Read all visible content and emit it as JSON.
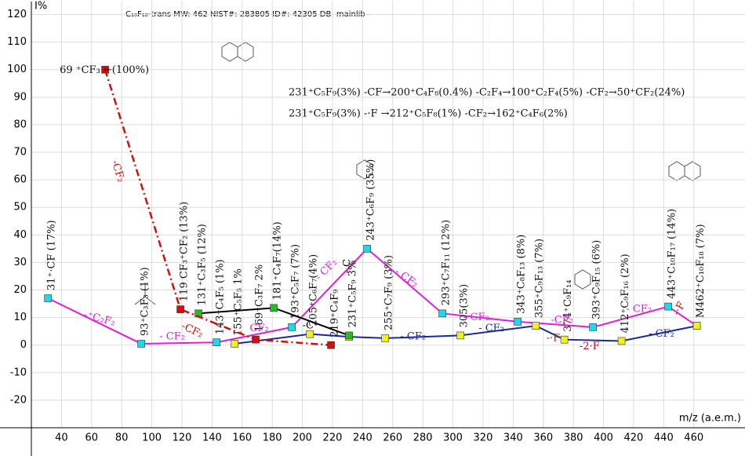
{
  "chart_data": {
    "type": "line",
    "header": "C₁₀F₁₈-trans  MW: 462  NIST#: 283805  ID#: 42305  DB: mainlib",
    "y_label": "I%",
    "x_label": "m/z (a.e.m.)",
    "xlim": [
      20,
      494
    ],
    "ylim": [
      -30,
      125
    ],
    "xticks": [
      40,
      60,
      80,
      100,
      120,
      140,
      160,
      180,
      200,
      220,
      240,
      260,
      280,
      300,
      320,
      340,
      360,
      380,
      400,
      420,
      440,
      460
    ],
    "yticks": [
      -20,
      -10,
      0,
      10,
      20,
      30,
      40,
      50,
      60,
      70,
      80,
      90,
      100,
      110,
      120
    ],
    "grid": true,
    "series": [
      {
        "color": "#e020d8",
        "marker": "#20d8e8",
        "dash": false,
        "x": [
          31,
          93,
          143,
          193,
          243,
          293,
          343,
          393,
          443,
          462
        ],
        "values": [
          17,
          0.5,
          1,
          6.5,
          35,
          11.5,
          8.5,
          6.5,
          14,
          7
        ],
        "labels": [
          "31⁺·CF (17%)",
          "93⁺C₃F₃ (1%)",
          "143⁺C₄F₅ (1%)",
          "193⁺C₅F₇ (7%)",
          "243⁺C₆F₉ (35%)",
          "293⁺C₇F₁₁ (12%)",
          "343⁺C₈F₁₃ (8%)",
          "393⁺C₉F₁₅ (6%)",
          "443⁺C₁₀F₁₇ (14%)",
          "M462⁺C₁₀F₁₈ (7%)"
        ]
      },
      {
        "color": "#1a2a9a",
        "marker": "#f0f020",
        "dash": false,
        "x": [
          155,
          205,
          231,
          255,
          305,
          355,
          374,
          412,
          462
        ],
        "values": [
          0.5,
          4,
          3,
          2.5,
          3.5,
          7,
          2,
          1.5,
          7
        ],
        "labels": [
          "155⁺C₅F₅ 1%",
          "205⁺C₆F₇(4%)",
          null,
          "255⁺C₇F₉ (3%)",
          "305(3%)",
          "355⁺C₉F₁₃ (7%)",
          "374⁺C₉F₁₄",
          "412⁺C₉F₁₆ (2%)",
          null
        ]
      },
      {
        "color": "#000000",
        "marker": "#20c020",
        "dash": false,
        "x": [
          131,
          181,
          231
        ],
        "values": [
          11.5,
          13.5,
          3.5
        ],
        "labels": [
          "131⁺C₃F₅ (12%)",
          "181⁺C₄F₇(14%)",
          "231⁺C₅F₉ 3%"
        ]
      },
      {
        "color": "#d01010",
        "marker": "#d01010",
        "dash": true,
        "x": [
          69,
          119,
          169,
          219
        ],
        "values": [
          100,
          13,
          2,
          0
        ],
        "labels": [
          "69 ⁺CF₃ ←(100%)",
          "119 CF₃⁺CF₂ (13%)",
          "169⁺C₃F₇ 2%",
          "219⁺C₄F₉"
        ]
      }
    ],
    "reactions": [
      "231⁺C₅F₉(3%)  -CF→200⁺C₄F₈(0.4%)  -C₂F₄→100⁺C₂F₄(5%)  -CF₂→50⁺CF₂(24%)",
      "231⁺C₅F₉(3%)  -·F →212⁺C₅F₈(1%)  -CF₂→162⁺C₄F₆(2%)"
    ],
    "annotations": [
      "-⁺C₂F₂",
      "- CF₂",
      "-CF₂",
      "CF₂",
      "-C",
      "- CF₂",
      "- C",
      "- CF₂",
      "- CF₂",
      "- CF₂",
      "- CF₂",
      "-CF₂",
      "-2·F",
      "-·F",
      "- CF₂",
      "- CF₂",
      "-·F",
      "-CF₂"
    ]
  }
}
